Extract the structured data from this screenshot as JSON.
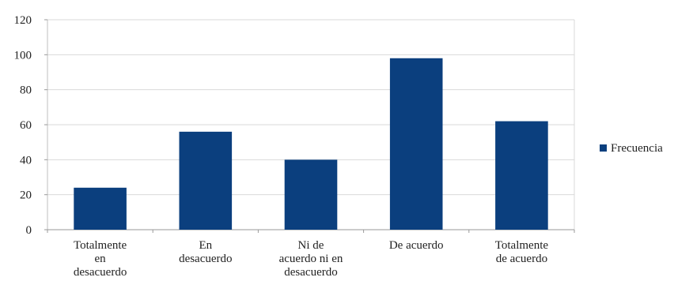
{
  "chart_data": {
    "type": "bar",
    "categories": [
      [
        "Totalmente",
        "en",
        "desacuerdo"
      ],
      [
        "En",
        "desacuerdo"
      ],
      [
        "Ni de",
        "acuerdo ni en",
        "desacuerdo"
      ],
      [
        "De acuerdo"
      ],
      [
        "Totalmente",
        "de acuerdo"
      ]
    ],
    "series": [
      {
        "name": "Frecuencia",
        "values": [
          24,
          56,
          40,
          98,
          62
        ],
        "color": "#0b3f7e"
      }
    ],
    "ylim": [
      0,
      120
    ],
    "yticks": [
      "0",
      "20",
      "40",
      "60",
      "80",
      "100",
      "120"
    ],
    "grid": true,
    "legend": "right",
    "title": "",
    "xlabel": "",
    "ylabel": ""
  }
}
